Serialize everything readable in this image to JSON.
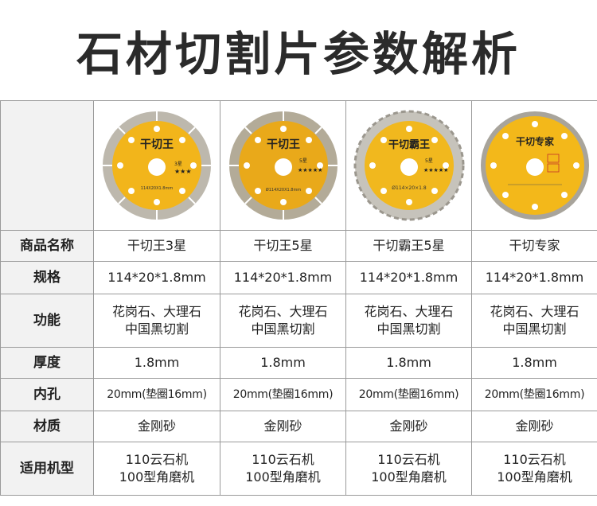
{
  "page": {
    "title": "石材切割片参数解析"
  },
  "table": {
    "row_headers": {
      "name": "商品名称",
      "spec": "规格",
      "function": "功能",
      "thickness": "厚度",
      "hole": "内孔",
      "material": "材质",
      "application": "适用机型"
    },
    "products": [
      {
        "name": "干切王3星",
        "disc_label": "干切王",
        "disc_stars": "3星",
        "disc_size": "114X20X1.8mm",
        "spec": "114*20*1.8mm",
        "function_line1": "花岗石、大理石",
        "function_line2": "中国黑切割",
        "thickness": "1.8mm",
        "hole": "20mm(垫圈16mm)",
        "material": "金刚砂",
        "application_line1": "110云石机",
        "application_line2": "100型角磨机"
      },
      {
        "name": "干切王5星",
        "disc_label": "干切王",
        "disc_stars": "5星",
        "disc_size": "Ø114X20X1.8mm",
        "spec": "114*20*1.8mm",
        "function_line1": "花岗石、大理石",
        "function_line2": "中国黑切割",
        "thickness": "1.8mm",
        "hole": "20mm(垫圈16mm)",
        "material": "金刚砂",
        "application_line1": "110云石机",
        "application_line2": "100型角磨机"
      },
      {
        "name": "干切霸王5星",
        "disc_label": "干切霸王",
        "disc_stars": "5星",
        "disc_size": "Ø114×20×1.8",
        "spec": "114*20*1.8mm",
        "function_line1": "花岗石、大理石",
        "function_line2": "中国黑切割",
        "thickness": "1.8mm",
        "hole": "20mm(垫圈16mm)",
        "material": "金刚砂",
        "application_line1": "110云石机",
        "application_line2": "100型角磨机"
      },
      {
        "name": "干切专家",
        "disc_label": "干切专家",
        "disc_stars": "",
        "disc_size": "",
        "spec": "114*20*1.8mm",
        "function_line1": "花岗石、大理石",
        "function_line2": "中国黑切割",
        "thickness": "1.8mm",
        "hole": "20mm(垫圈16mm)",
        "material": "金刚砂",
        "application_line1": "110云石机",
        "application_line2": "100型角磨机"
      }
    ]
  },
  "colors": {
    "disc_yellow": "#f2b51b",
    "disc_rim": "#b9b4aa",
    "header_bg": "#f2f2f2",
    "border": "#9a9a9a"
  }
}
